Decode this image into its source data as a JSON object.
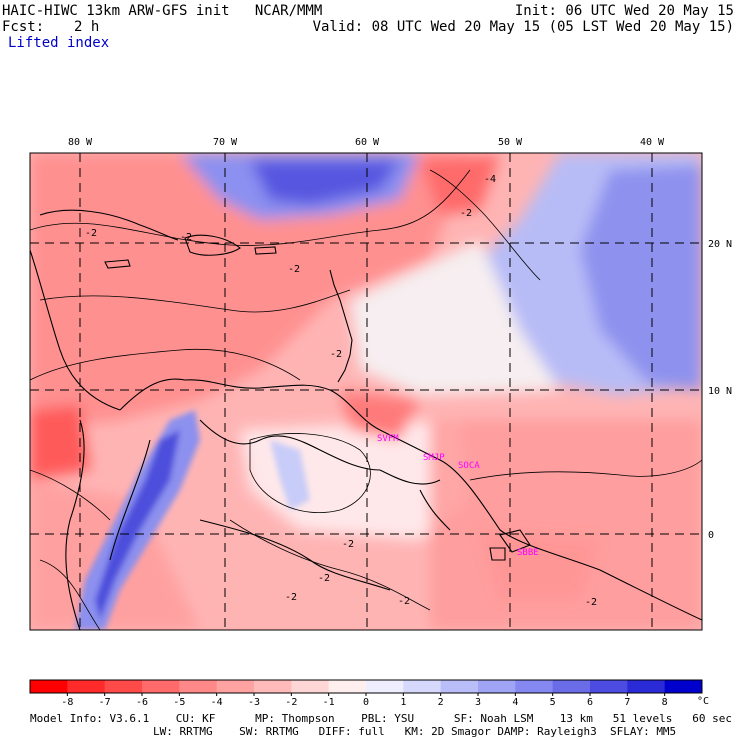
{
  "header": {
    "model_title": "HAIC-HIWC 13km ARW-GFS init   NCAR/MMM",
    "fcst_label": "Fcst:",
    "fcst_value": "2 h",
    "field_name": "Lifted index",
    "init": "Init: 06 UTC Wed 20 May 15",
    "valid": "Valid: 08 UTC Wed 20 May 15 (05 LST Wed 20 May 15)"
  },
  "map": {
    "lon_labels": [
      "80 W",
      "70 W",
      "60 W",
      "50 W",
      "40 W"
    ],
    "lat_labels": [
      "20 N",
      "10 N",
      "0"
    ],
    "contour_labels": [
      "-2",
      "-2",
      "-2",
      "-2",
      "-2",
      "-4",
      "-2",
      "-2",
      "-2",
      "-2",
      "-2"
    ],
    "station_labels": [
      "SVFM",
      "SMJP",
      "SOCA",
      "SBBE"
    ],
    "station_color": "#ff00ff",
    "colors": {
      "strong_negative": "#ff2020",
      "negative": "#ff9c9c",
      "weak_negative": "#ffd8d8",
      "neutral": "#ffffff",
      "positive": "#aab4f5",
      "strong_positive": "#3838e8"
    }
  },
  "colorbar": {
    "ticks": [
      "-8",
      "-7",
      "-6",
      "-5",
      "-4",
      "-3",
      "-2",
      "-1",
      "0",
      "1",
      "2",
      "3",
      "4",
      "5",
      "6",
      "7",
      "8"
    ],
    "unit": "°C",
    "colors": [
      "#ff0000",
      "#ff2a2a",
      "#ff4a4a",
      "#ff6a6a",
      "#ff8888",
      "#ffa2a2",
      "#ffbaba",
      "#ffd6d6",
      "#ffeeee",
      "#eeeeff",
      "#d6d8fc",
      "#babef8",
      "#a0a4f4",
      "#8488f0",
      "#6a6ce8",
      "#4c4ce0",
      "#2a2ad6",
      "#0000cc"
    ]
  },
  "footer": {
    "line1": "Model Info: V3.6.1    CU: KF      MP: Thompson    PBL: YSU      SF: Noah LSM    13 km   51 levels   60 sec",
    "line2": "LW: RRTMG    SW: RRTMG   DIFF: full   KM: 2D Smagor DAMP: Rayleigh3  SFLAY: MM5"
  }
}
